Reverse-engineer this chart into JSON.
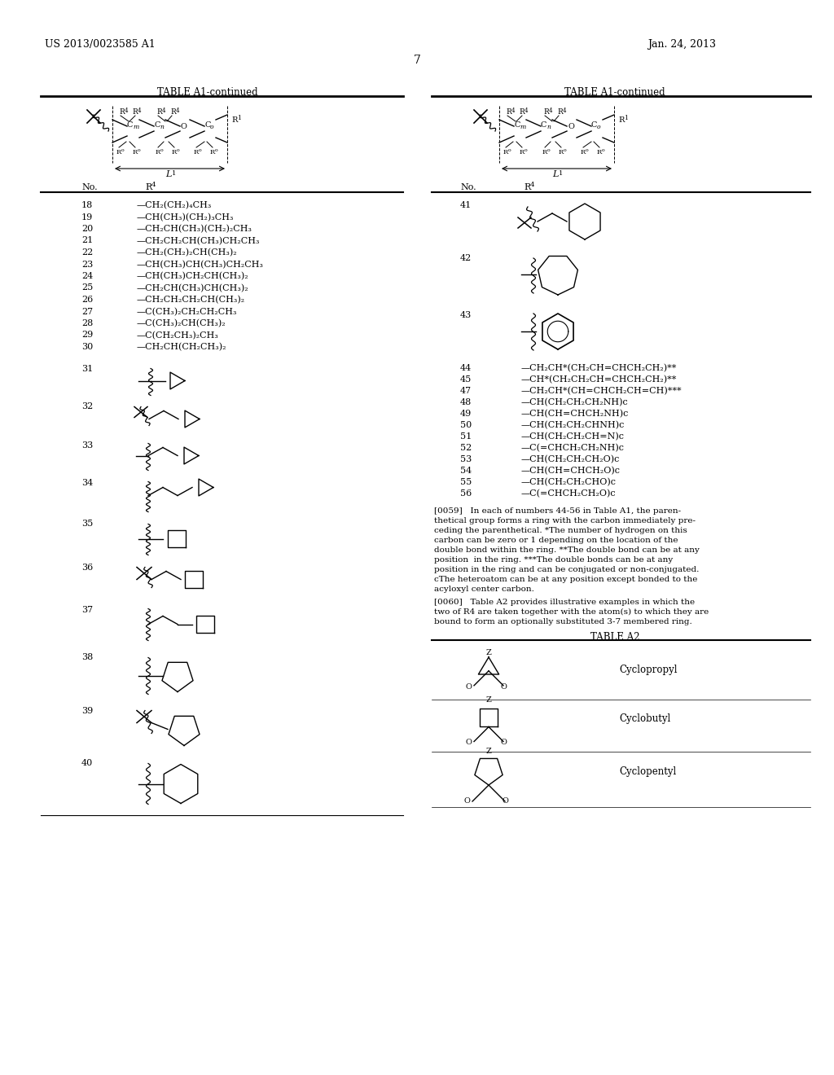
{
  "patent_number": "US 2013/0023585 A1",
  "date": "Jan. 24, 2013",
  "page": "7",
  "table_title": "TABLE A1-continued",
  "bg_color": "#ffffff",
  "left_entries": [
    {
      "no": "18",
      "r4": "—CH₂(CH₂)₄CH₃"
    },
    {
      "no": "19",
      "r4": "—CH(CH₃)(CH₂)₃CH₃"
    },
    {
      "no": "20",
      "r4": "—CH₂CH(CH₃)(CH₂)₂CH₃"
    },
    {
      "no": "21",
      "r4": "—CH₂CH₂CH(CH₃)CH₂CH₃"
    },
    {
      "no": "22",
      "r4": "—CH₂(CH₂)₂CH(CH₃)₂"
    },
    {
      "no": "23",
      "r4": "—CH(CH₃)CH(CH₃)CH₂CH₃"
    },
    {
      "no": "24",
      "r4": "—CH(CH₃)CH₂CH(CH₃)₂"
    },
    {
      "no": "25",
      "r4": "—CH₂CH(CH₃)CH(CH₃)₂"
    },
    {
      "no": "26",
      "r4": "—CH₂CH₂CH₂CH(CH₃)₂"
    },
    {
      "no": "27",
      "r4": "—C(CH₃)₂CH₂CH₂CH₃"
    },
    {
      "no": "28",
      "r4": "—C(CH₃)₂CH(CH₃)₂"
    },
    {
      "no": "29",
      "r4": "—C(CH₂CH₃)₂CH₃"
    },
    {
      "no": "30",
      "r4": "—CH₂CH(CH₂CH₃)₂"
    }
  ],
  "right_text_rows": [
    [
      "44",
      "—CH₂CH*(CH₂CH=CHCH₂CH₂)**"
    ],
    [
      "45",
      "—CH*(CH₂CH₂CH=CHCH₂CH₂)**"
    ],
    [
      "47",
      "—CH₂CH*(CH=CHCH₂CH=CH)***"
    ],
    [
      "48",
      "—CH(CH₂CH₂CH₂NH)c"
    ],
    [
      "49",
      "—CH(CH=CHCH₂NH)c"
    ],
    [
      "50",
      "—CH(CH₂CH₂CHNH)c"
    ],
    [
      "51",
      "—CH(CH₂CH₂CH=N)c"
    ],
    [
      "52",
      "—C(=CHCH₂CH₂NH)c"
    ],
    [
      "53",
      "—CH(CH₂CH₂CH₂O)c"
    ],
    [
      "54",
      "—CH(CH=CHCH₂O)c"
    ],
    [
      "55",
      "—CH(CH₂CH₂CHO)c"
    ],
    [
      "56",
      "—C(=CHCH₂CH₂O)c"
    ]
  ],
  "para_0059_lines": [
    "[0059]   In each of numbers 44-56 in Table A1, the paren-",
    "thetical group forms a ring with the carbon immediately pre-",
    "ceding the parenthetical. *The number of hydrogen on this",
    "carbon can be zero or 1 depending on the location of the",
    "double bond within the ring. **The double bond can be at any",
    "position  in the ring. ***The double bonds can be at any",
    "position in the ring and can be conjugated or non-conjugated.",
    "cThe heteroatom can be at any position except bonded to the",
    "acyloxyl center carbon."
  ],
  "para_0060_lines": [
    "[0060]   Table A2 provides illustrative examples in which the",
    "two of R4 are taken together with the atom(s) to which they are",
    "bound to form an optionally substituted 3-7 membered ring."
  ],
  "table_a2_labels": [
    "Cyclopropyl",
    "Cyclobutyl",
    "Cyclopentyl"
  ]
}
